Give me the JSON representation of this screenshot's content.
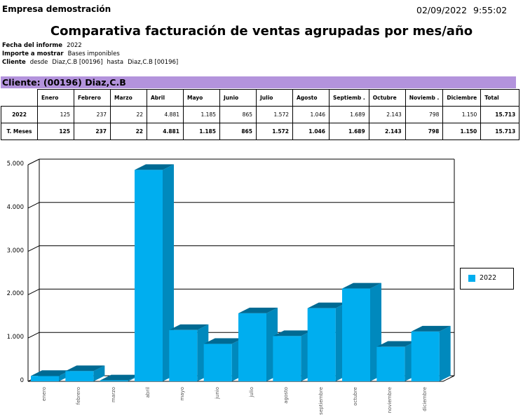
{
  "header": {
    "company": "Empresa demostración",
    "date": "02/09/2022",
    "time": "9:55:02",
    "title": "Comparativa facturación de ventas agrupadas por mes/año"
  },
  "meta": {
    "fecha_label": "Fecha del informe",
    "fecha_value": "2022",
    "importe_label": "Importe a mostrar",
    "importe_value": "Bases imponibles",
    "cliente_label": "Cliente",
    "cliente_desde": "desde",
    "cliente_from": "Diaz,C.B [00196]",
    "cliente_hasta": "hasta",
    "cliente_to": "Diaz,C.B [00196]"
  },
  "client_bar": "Cliente: (00196) Diaz,C.B",
  "table": {
    "headers": [
      "Enero",
      "Febrero",
      "Marzo",
      "Abril",
      "Mayo",
      "Junio",
      "Julio",
      "Agosto",
      "Septiemb .",
      "Octubre",
      "Noviemb .",
      "Diciembre",
      "Total"
    ],
    "rows": [
      {
        "label": "2022",
        "values": [
          "125",
          "237",
          "22",
          "4.881",
          "1.185",
          "865",
          "1.572",
          "1.046",
          "1.689",
          "2.143",
          "798",
          "1.150",
          "15.713"
        ]
      },
      {
        "label": "T. Meses",
        "values": [
          "125",
          "237",
          "22",
          "4.881",
          "1.185",
          "865",
          "1.572",
          "1.046",
          "1.689",
          "2.143",
          "798",
          "1.150",
          "15.713"
        ]
      }
    ]
  },
  "chart_data": {
    "type": "bar",
    "style": "3d",
    "title": "",
    "xlabel": "",
    "ylabel": "",
    "categories": [
      "enero",
      "febrero",
      "marzo",
      "abril",
      "mayo",
      "junio",
      "julio",
      "agosto",
      "septiembre",
      "octubre",
      "noviembre",
      "diciembre"
    ],
    "series": [
      {
        "name": "2022",
        "color": "#00aeef",
        "values": [
          125,
          237,
          22,
          4881,
          1185,
          865,
          1572,
          1046,
          1689,
          2143,
          798,
          1150
        ]
      }
    ],
    "yticks": [
      "0",
      "1.000",
      "2.000",
      "3.000",
      "4.000",
      "5.000"
    ],
    "ylim": [
      0,
      5000
    ],
    "grid": true,
    "legend_position": "right"
  },
  "colors": {
    "bar_front": "#00aeef",
    "bar_side": "#0089bd",
    "bar_top": "#006a93",
    "client_bar": "#b393dc"
  }
}
